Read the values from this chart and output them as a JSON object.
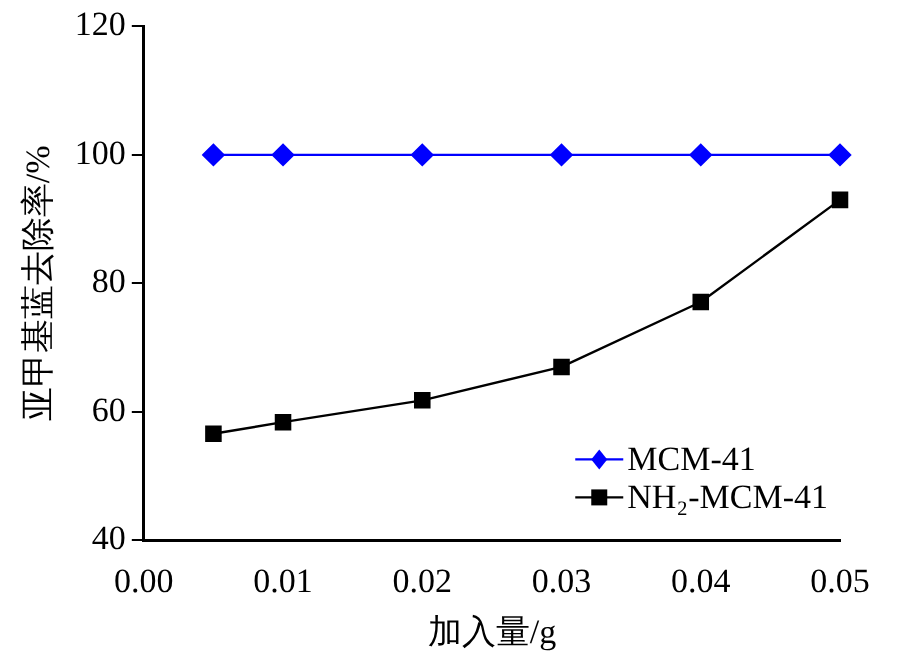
{
  "chart_data": {
    "type": "line",
    "xlabel": "加入量/g",
    "ylabel": "亚甲基蓝去除率/%",
    "x": [
      0.005,
      0.01,
      0.02,
      0.03,
      0.04,
      0.05
    ],
    "xlim": [
      0,
      0.05
    ],
    "xticks": [
      {
        "value": 0,
        "label": "0.00"
      },
      {
        "value": 0.01,
        "label": "0.01"
      },
      {
        "value": 0.02,
        "label": "0.02"
      },
      {
        "value": 0.03,
        "label": "0.03"
      },
      {
        "value": 0.04,
        "label": "0.04"
      },
      {
        "value": 0.05,
        "label": "0.05"
      }
    ],
    "ylim": [
      40,
      120
    ],
    "yticks": [
      40,
      60,
      80,
      100,
      120
    ],
    "grid": false,
    "legend": "bottom right",
    "line_style": "solid",
    "series": [
      {
        "name": "MCM-41",
        "color": "#0000ff",
        "marker": "diamond",
        "values": [
          100,
          100,
          100,
          100,
          100,
          100
        ]
      },
      {
        "name": "NH₂-MCM-41",
        "color": "#000000",
        "marker": "square",
        "values": [
          56.6,
          58.4,
          61.8,
          67,
          77.1,
          93
        ]
      }
    ]
  }
}
